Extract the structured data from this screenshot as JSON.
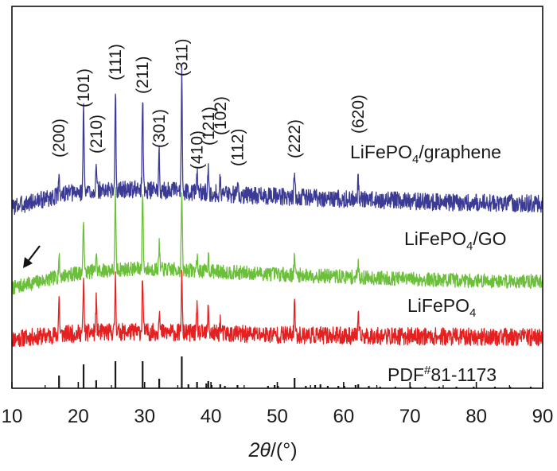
{
  "chart_data": {
    "type": "line",
    "title": "",
    "xlabel": "2θ/(°)",
    "xlabel_parts": {
      "italic": "2θ",
      "rest": "/(°)"
    },
    "ylabel": "",
    "xlim": [
      10,
      90
    ],
    "xticks": [
      "10",
      "20",
      "30",
      "40",
      "50",
      "60",
      "70",
      "80",
      "90"
    ],
    "peaks_hkl": [
      {
        "label": "(200)",
        "x": 17.1
      },
      {
        "label": "(101)",
        "x": 20.8
      },
      {
        "label": "(210)",
        "x": 22.7
      },
      {
        "label": "(111)",
        "x": 25.6
      },
      {
        "label": "(211)",
        "x": 29.7
      },
      {
        "label": "(301)",
        "x": 32.2
      },
      {
        "label": "(311)",
        "x": 35.6
      },
      {
        "label": "(410)",
        "x": 37.9
      },
      {
        "label": "(121)",
        "x": 39.6
      },
      {
        "label": "(102)",
        "x": 41.4
      },
      {
        "label": "(112)",
        "x": 44.0
      },
      {
        "label": "(222)",
        "x": 52.6
      },
      {
        "label": "(620)",
        "x": 62.2
      }
    ],
    "series": [
      {
        "name": "LiFePO4/graphene",
        "base": "LiFePO",
        "sub": "4",
        "suffix": "/graphene",
        "color": "#3b3b95",
        "background": [
          [
            10,
            20
          ],
          [
            14,
            28
          ],
          [
            18,
            36
          ],
          [
            22,
            40
          ],
          [
            28,
            42
          ],
          [
            35,
            40
          ],
          [
            45,
            35
          ],
          [
            60,
            30
          ],
          [
            75,
            26
          ],
          [
            90,
            24
          ]
        ],
        "noise": 11,
        "seed": 3,
        "peaks": [
          [
            17.1,
            30
          ],
          [
            20.8,
            110
          ],
          [
            22.7,
            26
          ],
          [
            25.6,
            128
          ],
          [
            29.7,
            120
          ],
          [
            32.2,
            45
          ],
          [
            35.6,
            150
          ],
          [
            37.9,
            25
          ],
          [
            39.6,
            28
          ],
          [
            41.4,
            20
          ],
          [
            44.0,
            14
          ],
          [
            52.6,
            35
          ],
          [
            62.2,
            25
          ]
        ]
      },
      {
        "name": "LiFePO4/GO",
        "base": "LiFePO",
        "sub": "4",
        "suffix": "/GO",
        "color": "#6cbf3a",
        "background": [
          [
            10,
            8
          ],
          [
            14,
            16
          ],
          [
            18,
            24
          ],
          [
            22,
            29
          ],
          [
            28,
            32
          ],
          [
            35,
            31
          ],
          [
            45,
            27
          ],
          [
            60,
            22
          ],
          [
            75,
            18
          ],
          [
            90,
            16
          ]
        ],
        "noise": 9,
        "seed": 7,
        "peaks": [
          [
            17.1,
            25
          ],
          [
            20.8,
            70
          ],
          [
            22.7,
            22
          ],
          [
            25.6,
            95
          ],
          [
            29.7,
            100
          ],
          [
            32.2,
            30
          ],
          [
            35.6,
            100
          ],
          [
            37.9,
            18
          ],
          [
            39.6,
            20
          ],
          [
            52.6,
            25
          ],
          [
            62.2,
            18
          ]
        ]
      },
      {
        "name": "LiFePO4",
        "base": "LiFePO",
        "sub": "4",
        "suffix": "",
        "color": "#e52020",
        "background": [
          [
            10,
            24
          ],
          [
            14,
            27
          ],
          [
            18,
            30
          ],
          [
            22,
            32
          ],
          [
            28,
            33
          ],
          [
            35,
            32
          ],
          [
            45,
            30
          ],
          [
            60,
            28
          ],
          [
            75,
            27
          ],
          [
            90,
            26
          ]
        ],
        "noise": 11,
        "seed": 11,
        "peaks": [
          [
            17.1,
            45
          ],
          [
            20.8,
            65
          ],
          [
            22.7,
            40
          ],
          [
            25.6,
            70
          ],
          [
            29.7,
            70
          ],
          [
            32.2,
            30
          ],
          [
            35.6,
            70
          ],
          [
            37.9,
            30
          ],
          [
            39.6,
            35
          ],
          [
            41.4,
            16
          ],
          [
            52.6,
            45
          ],
          [
            62.2,
            25
          ]
        ]
      }
    ],
    "reference": {
      "name": "PDF#81-1173",
      "prefix": "PDF",
      "sup": "#",
      "suffix": "81-1173",
      "color": "#1a1a1a",
      "lines": [
        [
          17.1,
          16
        ],
        [
          20.8,
          30
        ],
        [
          22.7,
          10
        ],
        [
          25.6,
          34
        ],
        [
          29.7,
          34
        ],
        [
          32.2,
          12
        ],
        [
          35.6,
          40
        ],
        [
          36.6,
          5
        ],
        [
          37.9,
          8
        ],
        [
          39.3,
          6
        ],
        [
          39.6,
          9
        ],
        [
          40.1,
          4
        ],
        [
          41.4,
          5
        ],
        [
          42.1,
          3
        ],
        [
          44.0,
          4
        ],
        [
          48.6,
          3
        ],
        [
          49.6,
          4
        ],
        [
          50.1,
          3
        ],
        [
          52.6,
          13
        ],
        [
          54.3,
          3
        ],
        [
          55.7,
          4
        ],
        [
          56.5,
          5
        ],
        [
          57.6,
          3
        ],
        [
          59.2,
          3
        ],
        [
          60.1,
          3
        ],
        [
          61.8,
          4
        ],
        [
          62.2,
          5
        ],
        [
          63.8,
          3
        ],
        [
          65.5,
          2
        ],
        [
          67.8,
          2
        ],
        [
          70.1,
          2
        ],
        [
          72.3,
          2
        ],
        [
          74.4,
          2
        ],
        [
          77.0,
          2
        ],
        [
          79.6,
          2
        ],
        [
          82.8,
          2
        ],
        [
          85.1,
          2
        ],
        [
          88.2,
          2
        ]
      ]
    },
    "annotations": [
      {
        "type": "arrow",
        "target_series": "LiFePO4/GO",
        "direction": "down-left",
        "note": ""
      }
    ]
  }
}
